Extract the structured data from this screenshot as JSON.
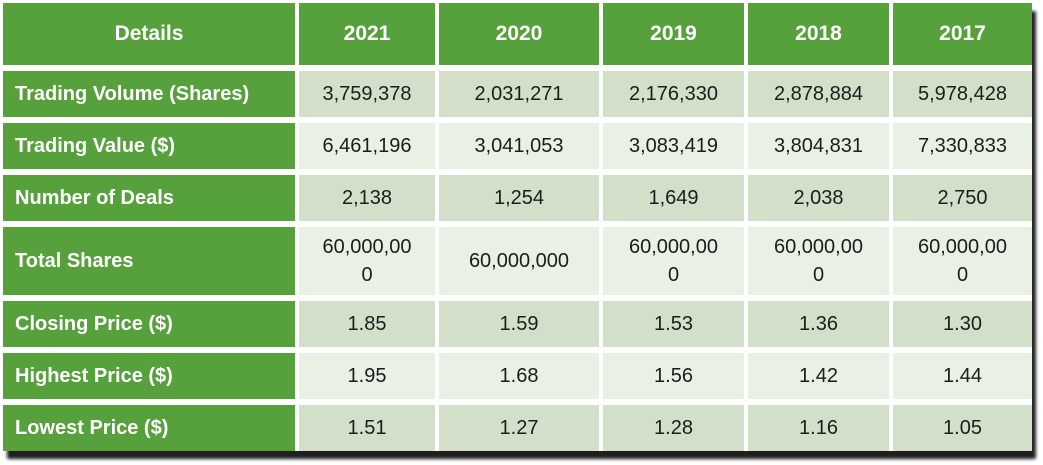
{
  "chart_data": {
    "type": "table",
    "title": "Yearly trading statistics table",
    "columns": [
      "Details",
      "2021",
      "2020",
      "2019",
      "2018",
      "2017"
    ],
    "rows": [
      {
        "label": "Trading Volume (Shares)",
        "values": [
          "3,759,378",
          "2,031,271",
          "2,176,330",
          "2,878,884",
          "5,978,428"
        ]
      },
      {
        "label": "Trading Value ($)",
        "values": [
          "6,461,196",
          "3,041,053",
          "3,083,419",
          "3,804,831",
          "7,330,833"
        ]
      },
      {
        "label": "Number of Deals",
        "values": [
          "2,138",
          "1,254",
          "1,649",
          "2,038",
          "2,750"
        ]
      },
      {
        "label": "Total Shares",
        "values": [
          "60,000,000",
          "60,000,000",
          "60,000,000",
          "60,000,000",
          "60,000,000"
        ],
        "wrap": true
      },
      {
        "label": "Closing Price ($)",
        "values": [
          "1.85",
          "1.59",
          "1.53",
          "1.36",
          "1.30"
        ]
      },
      {
        "label": "Highest Price ($)",
        "values": [
          "1.95",
          "1.68",
          "1.56",
          "1.42",
          "1.44"
        ]
      },
      {
        "label": "Lowest Price ($)",
        "values": [
          "1.51",
          "1.27",
          "1.28",
          "1.16",
          "1.05"
        ]
      }
    ],
    "layout_hints": {
      "banding": "odd data rows darker, even lighter",
      "header_row_and_label_column": "solid green with white bold text",
      "grid": "white gaps between cells, black drop shadow bottom-right"
    }
  },
  "colors": {
    "header_green": "#57A13C",
    "band_dark": "#D2E0CA",
    "band_light": "#E9F0E4",
    "data_text": "#1C1C1C",
    "header_text": "#FFFFFF"
  }
}
